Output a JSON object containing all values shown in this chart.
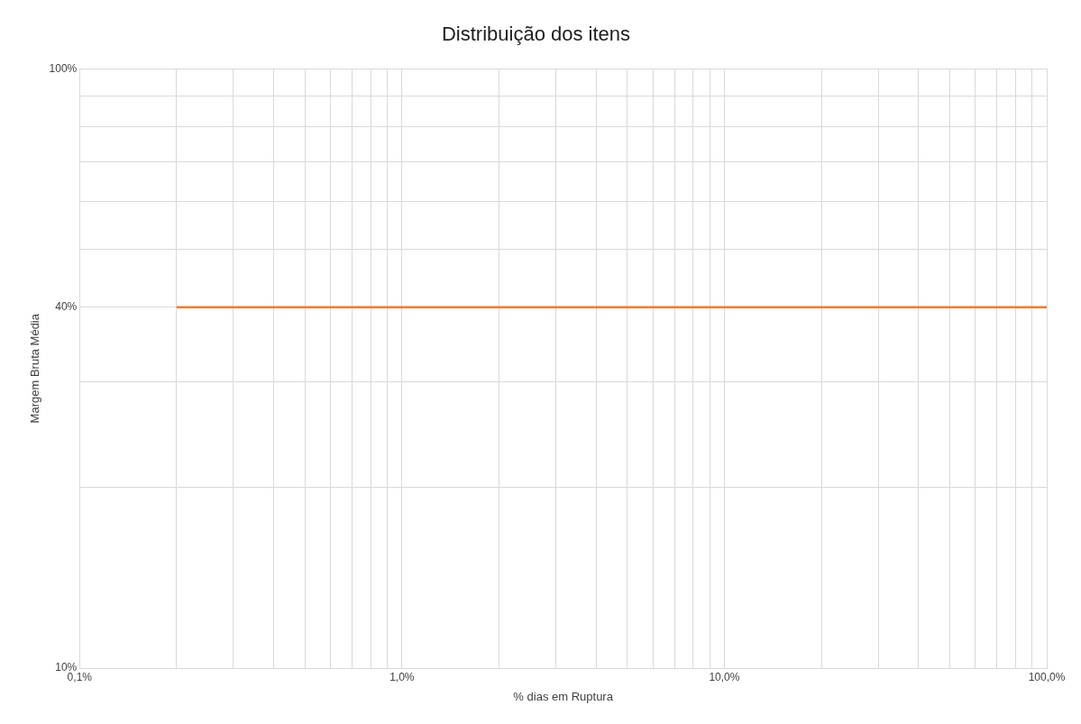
{
  "chart_data": {
    "type": "line",
    "title": "Distribuição dos itens",
    "xlabel": "% dias em Ruptura",
    "ylabel": "Margem Bruta Média",
    "series": [
      {
        "color": "#ed7d31",
        "x": [
          0.2,
          100
        ],
        "values": [
          40,
          40
        ]
      }
    ],
    "log": "xy",
    "marker": "none",
    "legend": false,
    "grid": true,
    "xlim": [
      0.1,
      100
    ],
    "ylim": [
      10,
      100
    ],
    "xticks": [
      {
        "value": 0.1,
        "label": "0,1%"
      },
      {
        "value": 0.2,
        "label": null
      },
      {
        "value": 0.3,
        "label": null
      },
      {
        "value": 0.4,
        "label": null
      },
      {
        "value": 0.5,
        "label": null
      },
      {
        "value": 0.6,
        "label": null
      },
      {
        "value": 0.7,
        "label": null
      },
      {
        "value": 0.8,
        "label": null
      },
      {
        "value": 0.9,
        "label": null
      },
      {
        "value": 1,
        "label": "1,0%"
      },
      {
        "value": 2,
        "label": null
      },
      {
        "value": 3,
        "label": null
      },
      {
        "value": 4,
        "label": null
      },
      {
        "value": 5,
        "label": null
      },
      {
        "value": 6,
        "label": null
      },
      {
        "value": 7,
        "label": null
      },
      {
        "value": 8,
        "label": null
      },
      {
        "value": 9,
        "label": null
      },
      {
        "value": 10,
        "label": "10,0%"
      },
      {
        "value": 20,
        "label": null
      },
      {
        "value": 30,
        "label": null
      },
      {
        "value": 40,
        "label": null
      },
      {
        "value": 50,
        "label": null
      },
      {
        "value": 60,
        "label": null
      },
      {
        "value": 70,
        "label": null
      },
      {
        "value": 80,
        "label": null
      },
      {
        "value": 90,
        "label": null
      },
      {
        "value": 100,
        "label": "100,0%"
      }
    ],
    "yticks": [
      {
        "value": 10,
        "label": "10%"
      },
      {
        "value": 20,
        "label": null
      },
      {
        "value": 30,
        "label": null
      },
      {
        "value": 40,
        "label": "40%"
      },
      {
        "value": 50,
        "label": null
      },
      {
        "value": 60,
        "label": null
      },
      {
        "value": 70,
        "label": null
      },
      {
        "value": 80,
        "label": null
      },
      {
        "value": 90,
        "label": null
      },
      {
        "value": 100,
        "label": "100%"
      }
    ]
  }
}
